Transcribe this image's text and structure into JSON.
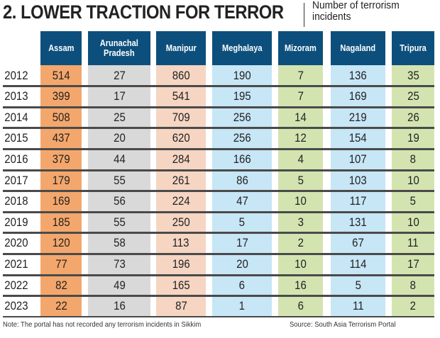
{
  "title": "2. LOWER TRACTION FOR TERROR",
  "subtitle": "Number of terrorism incidents",
  "colors": {
    "header": "#0d4f7c",
    "Assam": "#f4a76c",
    "Arunachal Pradesh": "#d9d9d9",
    "Manipur": "#f6d5c3",
    "Meghalaya": "#c7e6f6",
    "Mizoram": "#d4e4b1",
    "Nagaland": "#c7e6f6",
    "Tripura": "#d4e4b1"
  },
  "chart_data": {
    "type": "table",
    "columns": [
      "Assam",
      "Arunachal Pradesh",
      "Manipur",
      "Meghalaya",
      "Mizoram",
      "Nagaland",
      "Tripura"
    ],
    "column_labels": [
      [
        "Assam"
      ],
      [
        "Arunachal",
        "Pradesh"
      ],
      [
        "Manipur"
      ],
      [
        "Meghalaya"
      ],
      [
        "Mizoram"
      ],
      [
        "Nagaland"
      ],
      [
        "Tripura"
      ]
    ],
    "rows": [
      {
        "year": "2012",
        "values": [
          514,
          27,
          860,
          190,
          7,
          136,
          35
        ]
      },
      {
        "year": "2013",
        "values": [
          399,
          17,
          541,
          195,
          7,
          169,
          25
        ]
      },
      {
        "year": "2014",
        "values": [
          508,
          25,
          709,
          256,
          14,
          219,
          26
        ]
      },
      {
        "year": "2015",
        "values": [
          437,
          20,
          620,
          256,
          12,
          154,
          19
        ]
      },
      {
        "year": "2016",
        "values": [
          379,
          44,
          284,
          166,
          4,
          107,
          8
        ]
      },
      {
        "year": "2017",
        "values": [
          179,
          55,
          261,
          86,
          5,
          103,
          10
        ]
      },
      {
        "year": "2018",
        "values": [
          169,
          56,
          224,
          47,
          10,
          117,
          5
        ]
      },
      {
        "year": "2019",
        "values": [
          185,
          55,
          250,
          5,
          3,
          131,
          10
        ]
      },
      {
        "year": "2020",
        "values": [
          120,
          58,
          113,
          17,
          2,
          67,
          11
        ]
      },
      {
        "year": "2021",
        "values": [
          77,
          73,
          196,
          20,
          10,
          114,
          17
        ]
      },
      {
        "year": "2022",
        "values": [
          82,
          49,
          165,
          6,
          16,
          5,
          8
        ]
      },
      {
        "year": "2023",
        "values": [
          22,
          16,
          87,
          1,
          6,
          11,
          2
        ]
      }
    ]
  },
  "note": "Note: The portal has not recorded any terrorism incidents in Sikkim",
  "source": "Source: South Asia Terrorism Portal"
}
